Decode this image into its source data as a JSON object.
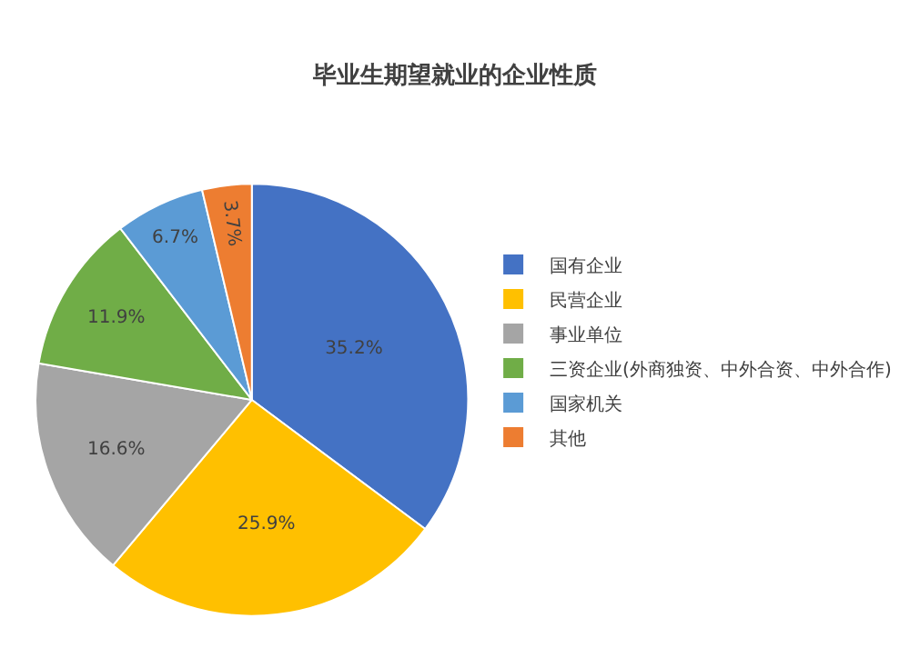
{
  "chart_data": {
    "type": "pie",
    "title": "毕业生期望就业的企业性质",
    "categories": [
      "国有企业",
      "民营企业",
      "事业单位",
      "三资企业(外商独资、中外合资、中外合作)",
      "国家机关",
      "其他"
    ],
    "values": [
      35.2,
      25.9,
      16.6,
      11.9,
      6.7,
      3.7
    ],
    "colors": [
      "#4472c4",
      "#ffc000",
      "#a5a5a5",
      "#70ad47",
      "#5b9bd5",
      "#ed7d31"
    ],
    "value_labels": [
      "35.2%",
      "25.9%",
      "16.6%",
      "11.9%",
      "6.7%",
      "3.7%"
    ],
    "legend": "right"
  }
}
